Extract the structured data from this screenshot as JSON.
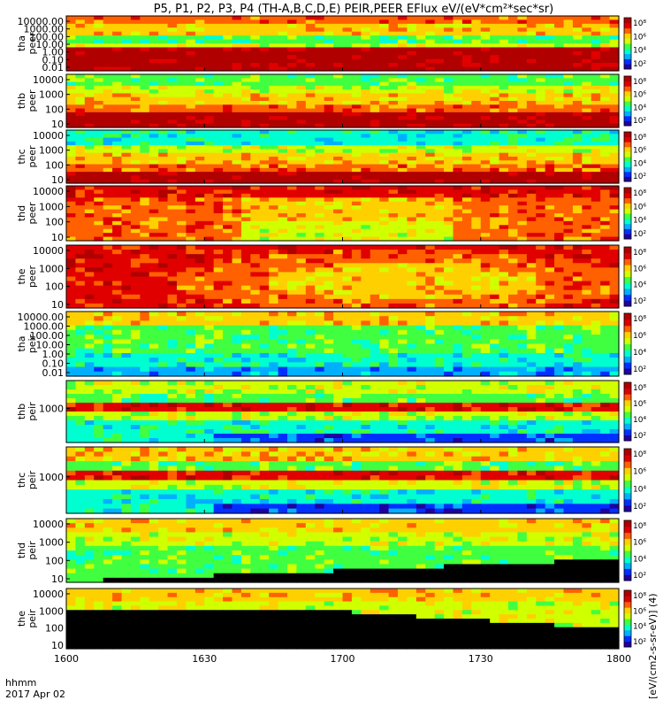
{
  "figure": {
    "title": "P5, P1, P2, P3, P4 (TH-A,B,C,D,E) PEIR,PEER EFlux eV/(eV*cm²*sec*sr)",
    "x_axis_prefix": "hhmm",
    "date_label": "2017 Apr 02",
    "colorbar_label": "[eV/(cm2-s-sr-eV)] (4)",
    "colormap": [
      "#2000a0",
      "#0030ff",
      "#00b0ff",
      "#00ffd0",
      "#40ff40",
      "#d0ff00",
      "#ffd000",
      "#ff6000",
      "#e00000",
      "#b00000"
    ]
  },
  "chart_data": [
    {
      "type": "heatmap",
      "probe": "tha",
      "species": "peer",
      "y_ticks": [
        "10000.00",
        "1000.00",
        "100.00",
        "10.00",
        "1.00",
        "0.10",
        "0.01"
      ],
      "colorbar_ticks": [
        "10⁸",
        "10⁶",
        "10⁴",
        "10²"
      ],
      "x_ticks": [
        "1600",
        "1630",
        "1700",
        "1730",
        "1800"
      ]
    },
    {
      "type": "heatmap",
      "probe": "thb",
      "species": "peer",
      "y_ticks": [
        "10000",
        "1000",
        "100",
        "10"
      ],
      "colorbar_ticks": [
        "10⁸",
        "10⁶",
        "10⁴",
        "10²"
      ],
      "x_ticks": [
        "1600",
        "1630",
        "1700",
        "1730",
        "1800"
      ]
    },
    {
      "type": "heatmap",
      "probe": "thc",
      "species": "peer",
      "y_ticks": [
        "10000",
        "1000",
        "100",
        "10"
      ],
      "colorbar_ticks": [
        "10⁸",
        "10⁶",
        "10⁴",
        "10²"
      ],
      "x_ticks": [
        "1600",
        "1630",
        "1700",
        "1730",
        "1800"
      ]
    },
    {
      "type": "heatmap",
      "probe": "thd",
      "species": "peer",
      "y_ticks": [
        "10000",
        "1000",
        "100",
        "10"
      ],
      "colorbar_ticks": [
        "10⁸",
        "10⁶",
        "10⁴",
        "10²"
      ],
      "x_ticks": [
        "1600",
        "1630",
        "1700",
        "1730",
        "1800"
      ]
    },
    {
      "type": "heatmap",
      "probe": "the",
      "species": "peer",
      "y_ticks": [
        "10000",
        "1000",
        "100",
        "10"
      ],
      "colorbar_ticks": [
        "10⁸",
        "10⁶",
        "10⁴",
        "10²"
      ],
      "x_ticks": [
        "1600",
        "1630",
        "1700",
        "1730",
        "1800"
      ]
    },
    {
      "type": "heatmap",
      "probe": "tha",
      "species": "peir",
      "y_ticks": [
        "10000.00",
        "1000.00",
        "100.00",
        "10.00",
        "1.00",
        "0.10",
        "0.01"
      ],
      "colorbar_ticks": [
        "10⁸",
        "10⁶",
        "10⁴",
        "10²"
      ],
      "x_ticks": [
        "1600",
        "1630",
        "1700",
        "1730",
        "1800"
      ]
    },
    {
      "type": "heatmap",
      "probe": "thb",
      "species": "peir",
      "y_ticks": [
        "1000"
      ],
      "colorbar_ticks": [
        "10⁸",
        "10⁶",
        "10⁴",
        "10²"
      ],
      "x_ticks": [
        "1600",
        "1630",
        "1700",
        "1730",
        "1800"
      ]
    },
    {
      "type": "heatmap",
      "probe": "thc",
      "species": "peir",
      "y_ticks": [
        "1000"
      ],
      "colorbar_ticks": [
        "10⁸",
        "10⁶",
        "10⁴",
        "10²"
      ],
      "x_ticks": [
        "1600",
        "1630",
        "1700",
        "1730",
        "1800"
      ]
    },
    {
      "type": "heatmap",
      "probe": "thd",
      "species": "peir",
      "y_ticks": [
        "10000",
        "1000",
        "100",
        "10"
      ],
      "colorbar_ticks": [
        "10⁸",
        "10⁶",
        "10⁴",
        "10²"
      ],
      "x_ticks": [
        "1600",
        "1630",
        "1700",
        "1730",
        "1800"
      ]
    },
    {
      "type": "heatmap",
      "probe": "the",
      "species": "peir",
      "y_ticks": [
        "10000",
        "1000",
        "100",
        "10"
      ],
      "colorbar_ticks": [
        "10⁸",
        "10⁶",
        "10⁴",
        "10²"
      ],
      "x_ticks": [
        "1600",
        "1630",
        "1700",
        "1730",
        "1800"
      ]
    }
  ]
}
